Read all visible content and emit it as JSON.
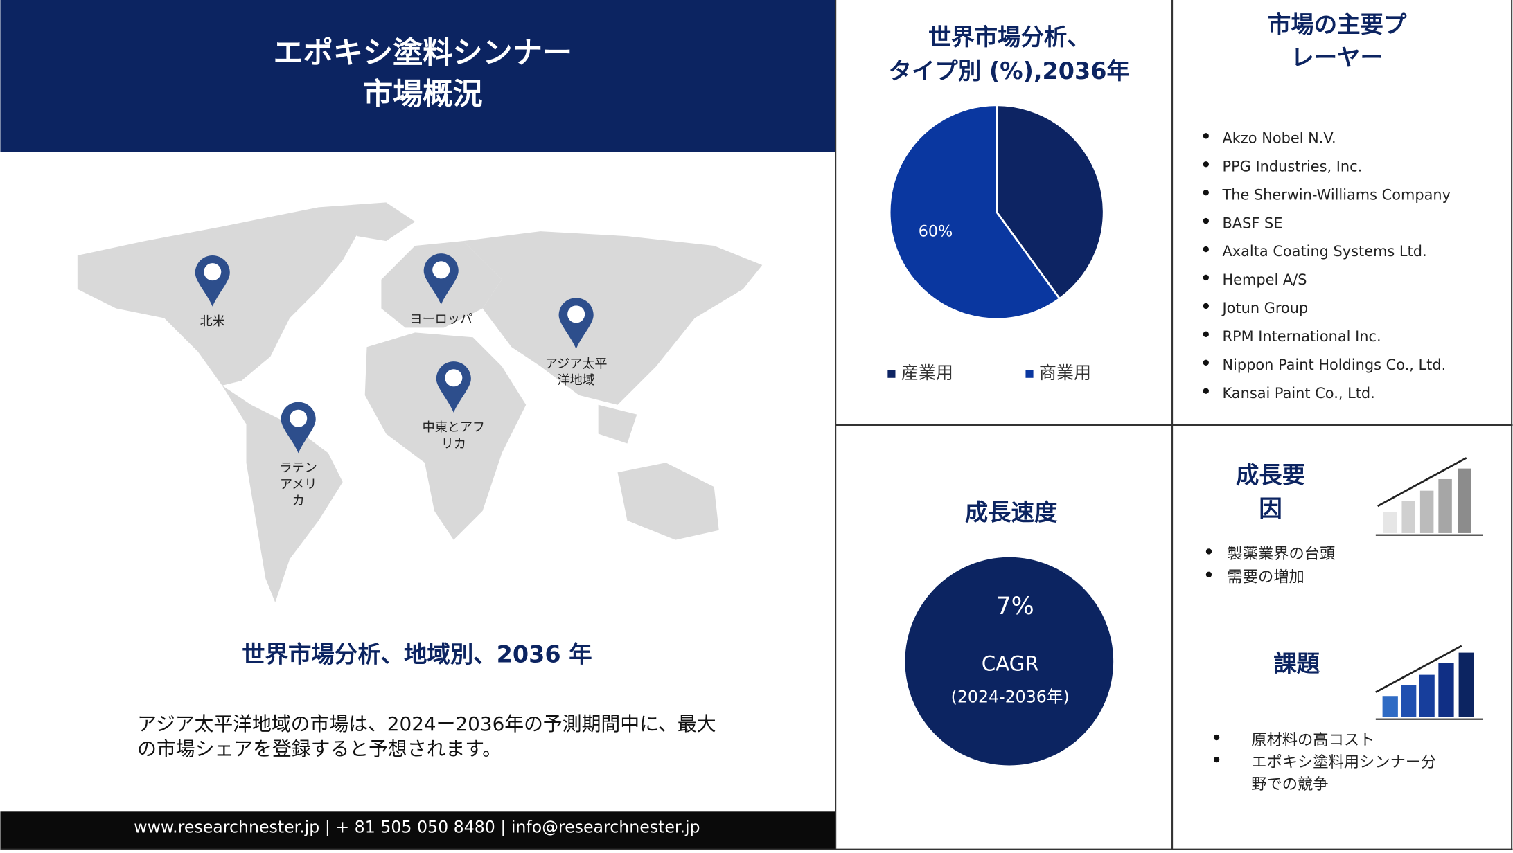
{
  "header": {
    "title": [
      "エポキシ塗料シンナー",
      "市場概況"
    ]
  },
  "map": {
    "regions": [
      [
        "北米"
      ],
      [
        "ヨーロッパ"
      ],
      [
        "アジア太平",
        "洋地域"
      ],
      [
        "中東とアフ",
        "リカ"
      ],
      [
        "ラテン",
        "アメリ",
        "カ"
      ]
    ],
    "title": "世界市場分析、地域別、2036 年",
    "description": [
      "アジア太平洋地域の市場は、2024ー2036年の予測期間中に、最大",
      "の市場シェアを登録すると予想されます。"
    ]
  },
  "footer": "www.researchnester.jp | + 81 505 050 8480 | info@researchnester.jp",
  "chart_data": {
    "type": "pie",
    "title": [
      "世界市場分析、",
      "タイプ別 (%),2036年"
    ],
    "categories": [
      "産業用",
      "商業用"
    ],
    "values": [
      40,
      60
    ],
    "value_labels": [
      null,
      "60%"
    ],
    "colors": [
      "#0d2463",
      "#0a37a0"
    ]
  },
  "players": {
    "title": [
      "市場の主要プ",
      "レーヤー"
    ],
    "items": [
      "Akzo Nobel N.V.",
      "PPG Industries, Inc.",
      "The Sherwin-Williams  Company",
      "BASF SE",
      "Axalta Coating Systems Ltd.",
      "Hempel A/S",
      "Jotun Group",
      "RPM International  Inc.",
      "Nippon Paint Holdings Co., Ltd.",
      "Kansai Paint Co., Ltd."
    ]
  },
  "growth": {
    "title": "成長速度",
    "value": "7%",
    "label": "CAGR",
    "period": "(2024-2036年)"
  },
  "drivers": {
    "title": [
      "成長要",
      "因"
    ],
    "items": [
      "製薬業界の台頭",
      "需要の増加"
    ]
  },
  "challenges": {
    "title": "課題",
    "items": [
      [
        "原材料の高コスト"
      ],
      [
        "エポキシ塗料用シンナー分",
        "野での競争"
      ]
    ]
  }
}
